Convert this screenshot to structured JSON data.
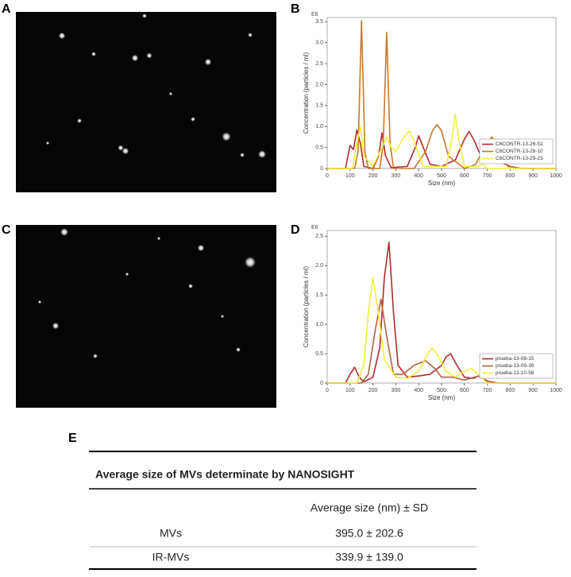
{
  "panel_labels": [
    "A",
    "B",
    "C",
    "D",
    "E"
  ],
  "chart_data": [
    {
      "type": "line",
      "y_unit_label": "E6",
      "ylabel": "Concentration (particles / ml)",
      "xlabel": "Size (nm)",
      "xlim": [
        0,
        1000
      ],
      "ylim": [
        0,
        3.6
      ],
      "xticks": [
        0,
        100,
        200,
        300,
        400,
        500,
        600,
        700,
        800,
        900,
        1000
      ],
      "yticks": [
        0,
        0.5,
        {
          "value": 1,
          "label": "1.0"
        },
        1.5,
        {
          "value": 2,
          "label": "2.0"
        },
        2.5,
        {
          "value": 3,
          "label": "3.0"
        },
        3.5
      ],
      "legend": "lower right",
      "series": [
        {
          "name": "C6CONTR-13-26-52",
          "color": "#b22a2a",
          "x": [
            0,
            80,
            100,
            115,
            130,
            145,
            160,
            200,
            225,
            240,
            255,
            280,
            350,
            385,
            400,
            420,
            450,
            500,
            560,
            600,
            620,
            640,
            680,
            700,
            720,
            760,
            800,
            850,
            1000
          ],
          "values": [
            0,
            0,
            0.55,
            0.45,
            0.92,
            0.6,
            0.05,
            0,
            0.3,
            0.85,
            0.3,
            0.02,
            0.05,
            0.5,
            0.78,
            0.5,
            0.1,
            0.05,
            0.2,
            0.7,
            0.88,
            0.7,
            0.2,
            0.3,
            0.35,
            0.15,
            0.05,
            0,
            0
          ]
        },
        {
          "name": "C6CONTR-13-28-10",
          "color": "#c8782c",
          "x": [
            0,
            120,
            135,
            150,
            165,
            180,
            230,
            245,
            260,
            275,
            290,
            380,
            430,
            460,
            480,
            500,
            530,
            600,
            650,
            690,
            720,
            750,
            790,
            850,
            1000
          ],
          "values": [
            0,
            0,
            0.4,
            3.52,
            0.4,
            0,
            0,
            0.6,
            3.25,
            0.6,
            0,
            0,
            0.4,
            0.9,
            1.05,
            0.9,
            0.3,
            0,
            0.1,
            0.55,
            0.75,
            0.5,
            0.05,
            0,
            0
          ]
        },
        {
          "name": "C6CONTR-13-29-23",
          "color": "#f2ee3a",
          "x": [
            0,
            110,
            130,
            145,
            160,
            200,
            240,
            260,
            280,
            300,
            330,
            360,
            390,
            420,
            520,
            545,
            560,
            575,
            600,
            660,
            680,
            700,
            1000
          ],
          "values": [
            0,
            0,
            0.6,
            1.0,
            0.3,
            0.05,
            0.5,
            0.75,
            0.5,
            0.4,
            0.7,
            0.9,
            0.5,
            0.05,
            0.05,
            0.7,
            1.3,
            0.7,
            0.05,
            0.05,
            0.1,
            0,
            0
          ]
        }
      ]
    },
    {
      "type": "line",
      "y_unit_label": "E6",
      "ylabel": "Concentration (particles / ml)",
      "xlabel": "Size (nm)",
      "xlim": [
        0,
        1000
      ],
      "ylim": [
        0,
        2.6
      ],
      "xticks": [
        0,
        100,
        200,
        300,
        400,
        500,
        600,
        700,
        800,
        900,
        1000
      ],
      "yticks": [
        0,
        0.5,
        {
          "value": 1,
          "label": "1.0"
        },
        1.5,
        {
          "value": 2,
          "label": "2.0"
        },
        2.5
      ],
      "legend": "lower right",
      "series": [
        {
          "name": "prueba-13-08-15",
          "color": "#b22a2a",
          "x": [
            0,
            80,
            100,
            120,
            140,
            160,
            200,
            230,
            250,
            270,
            290,
            310,
            350,
            400,
            450,
            500,
            520,
            540,
            560,
            600,
            640,
            660,
            700,
            750,
            1000
          ],
          "values": [
            0,
            0,
            0.15,
            0.27,
            0.1,
            0.02,
            0.1,
            0.6,
            1.8,
            2.4,
            1.2,
            0.3,
            0.1,
            0.12,
            0.15,
            0.3,
            0.45,
            0.5,
            0.35,
            0.1,
            0.08,
            0.12,
            0.03,
            0,
            0
          ]
        },
        {
          "name": "prueba-13-09-39",
          "color": "#b06040",
          "x": [
            0,
            150,
            180,
            210,
            235,
            260,
            290,
            330,
            380,
            430,
            470,
            500,
            550,
            600,
            660,
            720,
            1000
          ],
          "values": [
            0,
            0,
            0.15,
            0.9,
            1.43,
            0.8,
            0.15,
            0.15,
            0.3,
            0.38,
            0.25,
            0.1,
            0.1,
            0.05,
            0.12,
            0,
            0
          ]
        },
        {
          "name": "prueba-13-10-56",
          "color": "#f2ee3a",
          "x": [
            0,
            130,
            160,
            180,
            200,
            220,
            250,
            300,
            350,
            400,
            440,
            460,
            480,
            520,
            560,
            600,
            630,
            660,
            700,
            1000
          ],
          "values": [
            0,
            0,
            0.3,
            1.2,
            1.8,
            1.3,
            0.4,
            0.1,
            0.08,
            0.2,
            0.5,
            0.6,
            0.5,
            0.2,
            0.1,
            0.2,
            0.25,
            0.15,
            0,
            0
          ]
        }
      ]
    }
  ],
  "table": {
    "title": "Average size of MVs determinate by NANOSIGHT",
    "header": [
      "",
      "Average size (nm) ± SD"
    ],
    "rows": [
      [
        "MVs",
        "395.0 ± 202.6"
      ],
      [
        "IR-MVs",
        "339.9 ± 139.0"
      ]
    ]
  }
}
